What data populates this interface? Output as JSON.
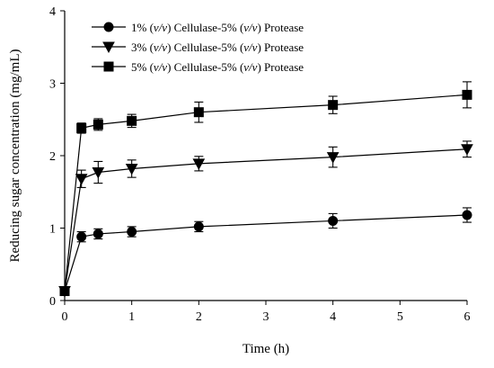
{
  "chart_data": {
    "type": "line",
    "xlabel": "Time (h)",
    "ylabel": "Reducing sugar concentration (mg/mL)",
    "xlim": [
      0,
      6
    ],
    "ylim": [
      0,
      4
    ],
    "xticks": [
      "0",
      "1",
      "2",
      "3",
      "4",
      "5",
      "6"
    ],
    "yticks": [
      "0",
      "1",
      "2",
      "3",
      "4"
    ],
    "grid": false,
    "legend_position": "top-left",
    "x": [
      0,
      0.25,
      0.5,
      1,
      2,
      4,
      6
    ],
    "series": [
      {
        "label_prefix": "1% (",
        "label_unit1": "v/v",
        "label_middle": ") Cellulase-5% (",
        "label_unit2": "v/v",
        "label_suffix": ") Protease",
        "marker": "circle",
        "values": [
          0.13,
          0.88,
          0.92,
          0.95,
          1.02,
          1.1,
          1.18
        ],
        "errors": [
          0.05,
          0.07,
          0.07,
          0.07,
          0.07,
          0.1,
          0.1
        ]
      },
      {
        "label_prefix": "3% (",
        "label_unit1": "v/v",
        "label_middle": ") Cellulase-5% (",
        "label_unit2": "v/v",
        "label_suffix": ") Protease",
        "marker": "triangle-down",
        "values": [
          0.13,
          1.68,
          1.77,
          1.82,
          1.89,
          1.98,
          2.09
        ],
        "errors": [
          0.05,
          0.12,
          0.15,
          0.12,
          0.1,
          0.14,
          0.11
        ]
      },
      {
        "label_prefix": "5% (",
        "label_unit1": "v/v",
        "label_middle": ") Cellulase-5% (",
        "label_unit2": "v/v",
        "label_suffix": ") Protease",
        "marker": "square",
        "values": [
          0.13,
          2.38,
          2.43,
          2.48,
          2.6,
          2.7,
          2.84
        ],
        "errors": [
          0.05,
          0.07,
          0.08,
          0.09,
          0.14,
          0.12,
          0.18
        ]
      }
    ]
  },
  "colors": {
    "ink": "#000000",
    "background": "#ffffff"
  }
}
